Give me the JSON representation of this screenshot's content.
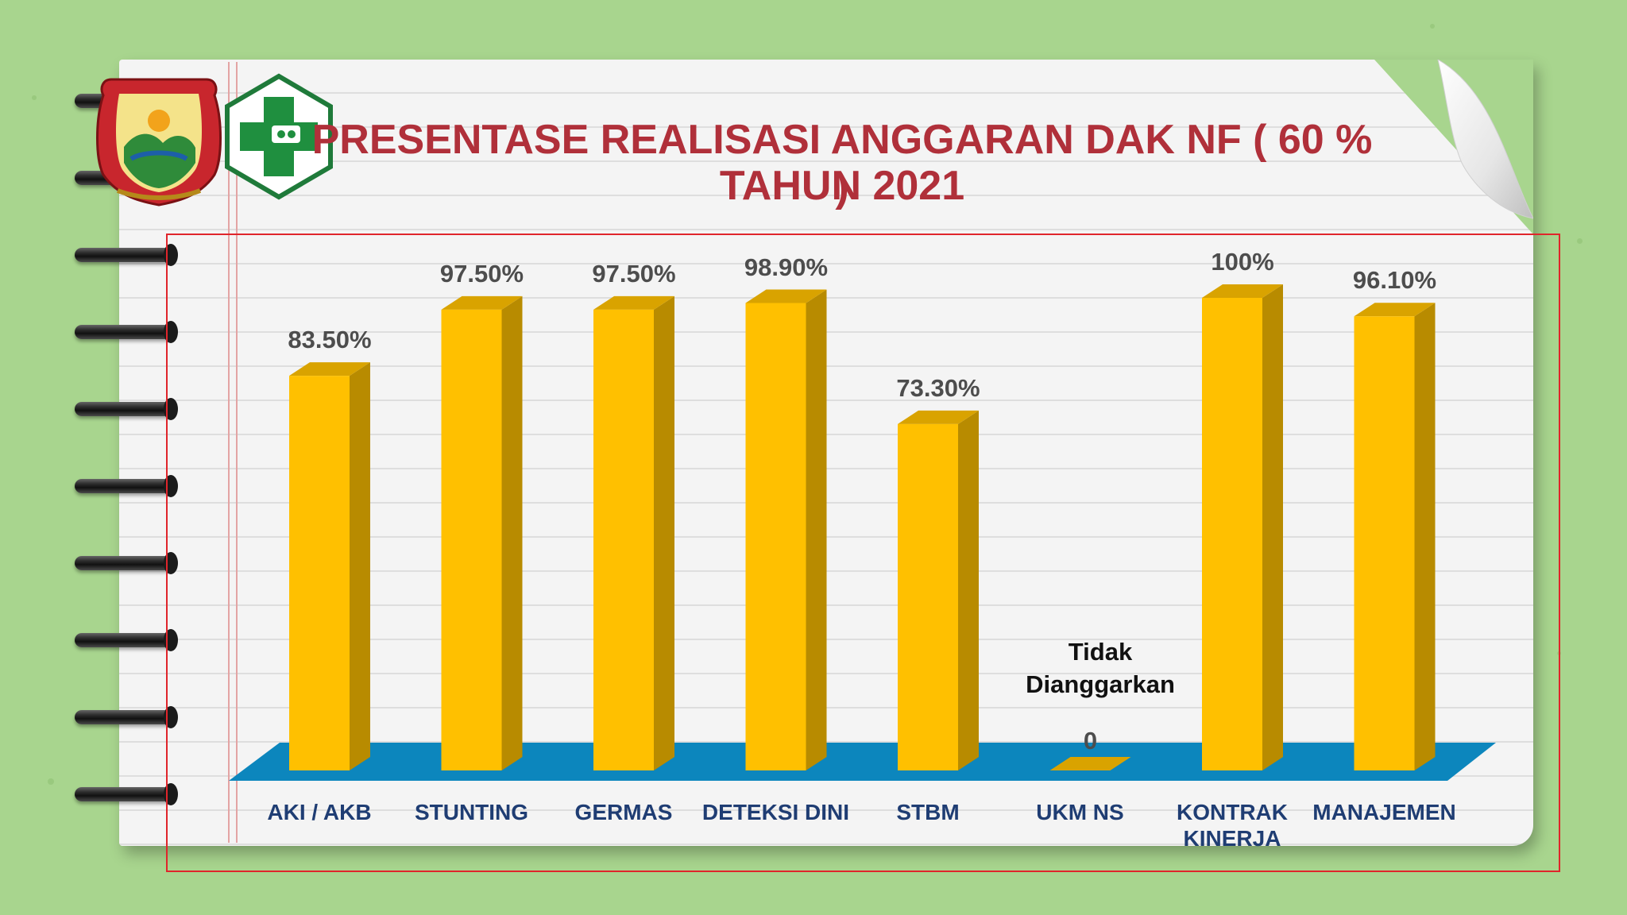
{
  "title": {
    "line1": "PRESENTASE REALISASI ANGGARAN DAK NF ( 60 % )",
    "line2": "TAHUN 2021"
  },
  "chart_data": {
    "type": "bar",
    "categories": [
      "AKI / AKB",
      "STUNTING",
      "GERMAS",
      "DETEKSI DINI",
      "STBM",
      "UKM NS",
      "KONTRAK KINERJA",
      "MANAJEMEN"
    ],
    "category_lines": [
      [
        "AKI / AKB"
      ],
      [
        "STUNTING"
      ],
      [
        "GERMAS"
      ],
      [
        "DETEKSI DINI"
      ],
      [
        "STBM"
      ],
      [
        "UKM NS"
      ],
      [
        "KONTRAK",
        "KINERJA"
      ],
      [
        "MANAJEMEN"
      ]
    ],
    "values": [
      83.5,
      97.5,
      97.5,
      98.9,
      73.3,
      0,
      100,
      96.1
    ],
    "data_labels": [
      "83.50%",
      "97.50%",
      "97.50%",
      "98.90%",
      "73.30%",
      "0",
      "100%",
      "96.10%"
    ],
    "annotation": {
      "category": "UKM NS",
      "text_lines": [
        "Tidak",
        "Dianggarkan"
      ]
    },
    "ylim": [
      0,
      100
    ],
    "grid": false,
    "legend": "none",
    "colors": {
      "bar_front": "#ffc000",
      "bar_side": "#b88b00",
      "bar_top": "#d9a300",
      "floor": "#0c86bd",
      "value_label": "#4d4d4d",
      "category_label": "#1f3d73"
    }
  },
  "colors": {
    "background": "#a8d58e",
    "title": "#b0303a",
    "frame": "#e0252b"
  },
  "icons": [
    "regional-emblem-icon",
    "health-cross-icon"
  ]
}
